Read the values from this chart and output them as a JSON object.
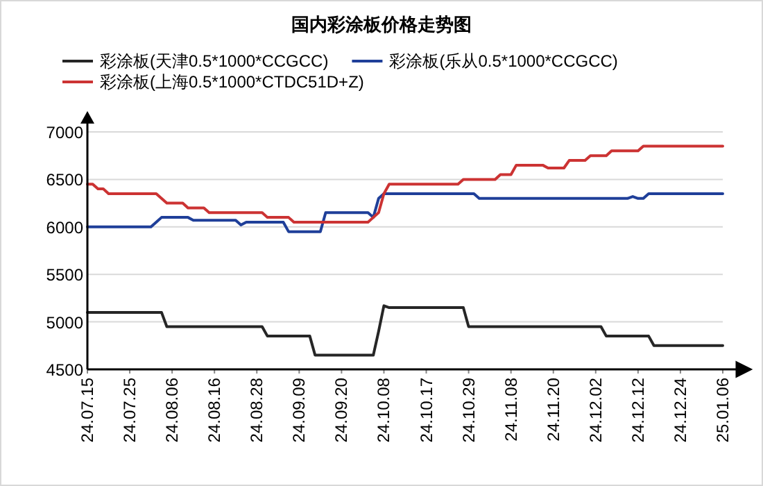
{
  "chart_data": {
    "type": "line",
    "title": "国内彩涂板价格走势图",
    "categories": [
      "24.07.15",
      null,
      null,
      null,
      null,
      null,
      null,
      null,
      "24.07.25",
      null,
      null,
      null,
      null,
      null,
      null,
      null,
      "24.08.06",
      null,
      null,
      null,
      null,
      null,
      null,
      null,
      "24.08.16",
      null,
      null,
      null,
      null,
      null,
      null,
      null,
      "24.08.28",
      null,
      null,
      null,
      null,
      null,
      null,
      null,
      "24.09.09",
      null,
      null,
      null,
      null,
      null,
      null,
      null,
      "24.09.20",
      null,
      null,
      null,
      null,
      null,
      null,
      null,
      "24.10.08",
      null,
      null,
      null,
      null,
      null,
      null,
      null,
      "24.10.17",
      null,
      null,
      null,
      null,
      null,
      null,
      null,
      "24.10.29",
      null,
      null,
      null,
      null,
      null,
      null,
      null,
      "24.11.08",
      null,
      null,
      null,
      null,
      null,
      null,
      null,
      "24.11.20",
      null,
      null,
      null,
      null,
      null,
      null,
      null,
      "24.12.02",
      null,
      null,
      null,
      null,
      null,
      null,
      null,
      "24.12.12",
      null,
      null,
      null,
      null,
      null,
      null,
      null,
      "24.12.24",
      null,
      null,
      null,
      null,
      null,
      null,
      null,
      "25.01.06"
    ],
    "series": [
      {
        "name": "彩涂板(天津0.5*1000*CCGCC)",
        "color": "#262626",
        "values": [
          5100,
          5100,
          5100,
          5100,
          5100,
          5100,
          5100,
          5100,
          5100,
          5100,
          5100,
          5100,
          5100,
          5100,
          5100,
          4950,
          4950,
          4950,
          4950,
          4950,
          4950,
          4950,
          4950,
          4950,
          4950,
          4950,
          4950,
          4950,
          4950,
          4950,
          4950,
          4950,
          4950,
          4950,
          4850,
          4850,
          4850,
          4850,
          4850,
          4850,
          4850,
          4850,
          4850,
          4650,
          4650,
          4650,
          4650,
          4650,
          4650,
          4650,
          4650,
          4650,
          4650,
          4650,
          4650,
          4900,
          5170,
          5150,
          5150,
          5150,
          5150,
          5150,
          5150,
          5150,
          5150,
          5150,
          5150,
          5150,
          5150,
          5150,
          5150,
          5150,
          4950,
          4950,
          4950,
          4950,
          4950,
          4950,
          4950,
          4950,
          4950,
          4950,
          4950,
          4950,
          4950,
          4950,
          4950,
          4950,
          4950,
          4950,
          4950,
          4950,
          4950,
          4950,
          4950,
          4950,
          4950,
          4950,
          4850,
          4850,
          4850,
          4850,
          4850,
          4850,
          4850,
          4850,
          4850,
          4750,
          4750,
          4750,
          4750,
          4750,
          4750,
          4750,
          4750,
          4750,
          4750,
          4750,
          4750,
          4750,
          4750
        ]
      },
      {
        "name": "彩涂板(乐从0.5*1000*CCGCC)",
        "color": "#1f3f99",
        "values": [
          6000,
          6000,
          6000,
          6000,
          6000,
          6000,
          6000,
          6000,
          6000,
          6000,
          6000,
          6000,
          6000,
          6050,
          6100,
          6100,
          6100,
          6100,
          6100,
          6100,
          6070,
          6070,
          6070,
          6070,
          6070,
          6070,
          6070,
          6070,
          6070,
          6020,
          6050,
          6050,
          6050,
          6050,
          6050,
          6050,
          6050,
          6050,
          5950,
          5950,
          5950,
          5950,
          5950,
          5950,
          5950,
          6150,
          6150,
          6150,
          6150,
          6150,
          6150,
          6150,
          6150,
          6150,
          6100,
          6300,
          6350,
          6350,
          6350,
          6350,
          6350,
          6350,
          6350,
          6350,
          6350,
          6350,
          6350,
          6350,
          6350,
          6350,
          6350,
          6350,
          6350,
          6350,
          6300,
          6300,
          6300,
          6300,
          6300,
          6300,
          6300,
          6300,
          6300,
          6300,
          6300,
          6300,
          6300,
          6300,
          6300,
          6300,
          6300,
          6300,
          6300,
          6300,
          6300,
          6300,
          6300,
          6300,
          6300,
          6300,
          6300,
          6300,
          6300,
          6320,
          6300,
          6300,
          6350,
          6350,
          6350,
          6350,
          6350,
          6350,
          6350,
          6350,
          6350,
          6350,
          6350,
          6350,
          6350,
          6350,
          6350
        ]
      },
      {
        "name": "彩涂板(上海0.5*1000*CTDC51D+Z)",
        "color": "#cc3333",
        "values": [
          6450,
          6450,
          6400,
          6400,
          6350,
          6350,
          6350,
          6350,
          6350,
          6350,
          6350,
          6350,
          6350,
          6350,
          6300,
          6250,
          6250,
          6250,
          6250,
          6200,
          6200,
          6200,
          6200,
          6150,
          6150,
          6150,
          6150,
          6150,
          6150,
          6150,
          6150,
          6150,
          6150,
          6150,
          6100,
          6100,
          6100,
          6100,
          6100,
          6050,
          6050,
          6050,
          6050,
          6050,
          6050,
          6050,
          6050,
          6050,
          6050,
          6050,
          6050,
          6050,
          6050,
          6050,
          6100,
          6150,
          6350,
          6450,
          6450,
          6450,
          6450,
          6450,
          6450,
          6450,
          6450,
          6450,
          6450,
          6450,
          6450,
          6450,
          6450,
          6500,
          6500,
          6500,
          6500,
          6500,
          6500,
          6500,
          6550,
          6550,
          6550,
          6650,
          6650,
          6650,
          6650,
          6650,
          6650,
          6620,
          6620,
          6620,
          6620,
          6700,
          6700,
          6700,
          6700,
          6750,
          6750,
          6750,
          6750,
          6800,
          6800,
          6800,
          6800,
          6800,
          6800,
          6850,
          6850,
          6850,
          6850,
          6850,
          6850,
          6850,
          6850,
          6850,
          6850,
          6850,
          6850,
          6850,
          6850,
          6850,
          6850
        ]
      }
    ],
    "ylim": [
      4500,
      7000
    ],
    "yticks": [
      4500,
      5000,
      5500,
      6000,
      6500,
      7000
    ],
    "grid": "y",
    "legend": "top",
    "marker": "none",
    "line_style": "solid"
  }
}
